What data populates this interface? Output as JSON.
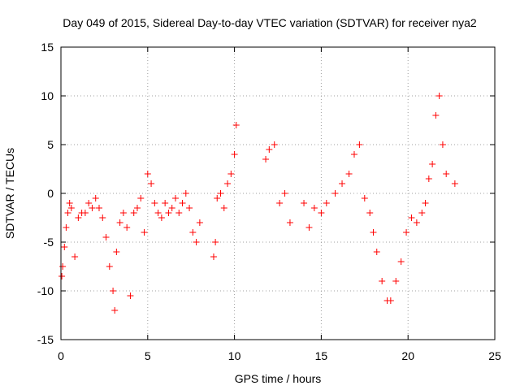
{
  "chart_data": {
    "type": "scatter",
    "title": "Day 049 of 2015, Sidereal Day-to-day VTEC variation (SDTVAR) for receiver nya2",
    "xlabel": "GPS time / hours",
    "ylabel": "SDTVAR / TECUs",
    "xlim": [
      0,
      25
    ],
    "ylim": [
      -15,
      15
    ],
    "xticks": [
      0,
      5,
      10,
      15,
      20,
      25
    ],
    "yticks": [
      -15,
      -10,
      -5,
      0,
      5,
      10,
      15
    ],
    "grid": true,
    "marker": "+",
    "color": "#ff0000",
    "series": [
      {
        "name": "SDTVAR",
        "x": [
          0.05,
          0.1,
          0.2,
          0.3,
          0.4,
          0.5,
          0.6,
          0.8,
          1.0,
          1.2,
          1.4,
          1.6,
          1.8,
          2.0,
          2.2,
          2.4,
          2.6,
          2.8,
          3.0,
          3.1,
          3.2,
          3.4,
          3.6,
          3.8,
          4.0,
          4.2,
          4.4,
          4.6,
          4.8,
          5.0,
          5.2,
          5.4,
          5.6,
          5.8,
          6.0,
          6.2,
          6.4,
          6.6,
          6.8,
          7.0,
          7.2,
          7.4,
          7.6,
          7.8,
          8.0,
          8.8,
          8.9,
          9.0,
          9.2,
          9.4,
          9.6,
          9.8,
          10.0,
          10.1,
          11.8,
          12.0,
          12.3,
          12.6,
          12.9,
          13.2,
          14.0,
          14.3,
          14.6,
          15.0,
          15.3,
          15.8,
          16.2,
          16.6,
          16.9,
          17.2,
          17.5,
          17.8,
          18.0,
          18.2,
          18.5,
          18.8,
          19.0,
          19.3,
          19.6,
          19.9,
          20.2,
          20.5,
          20.8,
          21.0,
          21.2,
          21.4,
          21.6,
          21.8,
          22.0,
          22.2,
          22.7
        ],
        "y": [
          -8.5,
          -7.5,
          -5.5,
          -3.5,
          -2,
          -1,
          -1.5,
          -6.5,
          -2.5,
          -2,
          -2,
          -1,
          -1.5,
          -0.5,
          -1.5,
          -2.5,
          -4.5,
          -7.5,
          -10,
          -12,
          -6,
          -3,
          -2,
          -3.5,
          -10.5,
          -2,
          -1.5,
          -0.5,
          -4,
          2,
          1,
          -1,
          -2,
          -2.5,
          -1,
          -2,
          -1.5,
          -0.5,
          -2,
          -1,
          0,
          -1.5,
          -4,
          -5,
          -3,
          -6.5,
          -5,
          -0.5,
          0,
          -1.5,
          1,
          2,
          4,
          7,
          3.5,
          4.5,
          5,
          -1,
          0,
          -3,
          -1,
          -3.5,
          -1.5,
          -2,
          -1,
          0,
          1,
          2,
          4,
          5,
          -0.5,
          -2,
          -4,
          -6,
          -9,
          -11,
          -11,
          -9,
          -7,
          -4,
          -2.5,
          -3,
          -2,
          -1,
          1.5,
          3,
          8,
          10,
          5,
          2,
          1
        ]
      }
    ]
  }
}
